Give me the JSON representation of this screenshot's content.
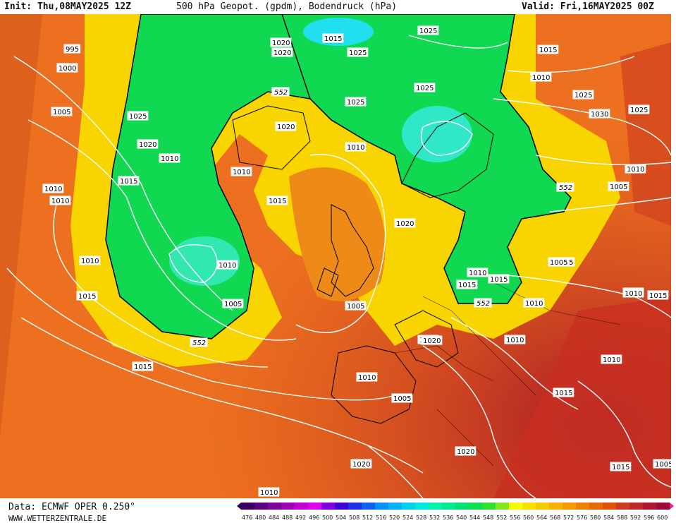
{
  "header": {
    "init": "Init: Thu,08MAY2025 12Z",
    "title": "500 hPa Geopot. (gpdm), Bodendruck (hPa)",
    "valid": "Valid: Fri,16MAY2025 00Z"
  },
  "footer": {
    "data_source": "Data: ECMWF OPER 0.250°",
    "website": "WWW.WETTERZENTRALE.DE"
  },
  "legend": {
    "ticks": [
      "476",
      "480",
      "484",
      "488",
      "492",
      "496",
      "500",
      "504",
      "508",
      "512",
      "516",
      "520",
      "524",
      "528",
      "532",
      "536",
      "540",
      "544",
      "548",
      "552",
      "556",
      "560",
      "564",
      "568",
      "572",
      "576",
      "580",
      "584",
      "588",
      "592",
      "596",
      "600"
    ],
    "colors": [
      "#3a0060",
      "#5c0080",
      "#80009c",
      "#a000b8",
      "#c000d6",
      "#e000f0",
      "#8000e0",
      "#4000d8",
      "#2030e8",
      "#1060f0",
      "#0090f8",
      "#00b0f8",
      "#00d0f0",
      "#00e8e0",
      "#00f0b0",
      "#00e890",
      "#00e070",
      "#10e050",
      "#30e030",
      "#80e820",
      "#f8f800",
      "#f8e000",
      "#f8c800",
      "#f8b000",
      "#f89800",
      "#f08000",
      "#e86800",
      "#e05000",
      "#d03820",
      "#c02828",
      "#b01830",
      "#a00838"
    ]
  },
  "map": {
    "contour_552_label": "552",
    "pressure_labels": [
      "995",
      "1000",
      "1005",
      "1025",
      "1020",
      "1010",
      "1015",
      "1010",
      "1010",
      "1010",
      "1015",
      "1020",
      "1015",
      "1025",
      "1020",
      "1025",
      "1015",
      "1010",
      "1025",
      "1030",
      "1025",
      "1020",
      "1025",
      "1025",
      "1015",
      "1010",
      "1005",
      "1010",
      "1020",
      "1010",
      "1005",
      "1010",
      "1005",
      "1010",
      "1015",
      "1015",
      "1015",
      "1015",
      "1015",
      "1010",
      "1010",
      "1005",
      "1010",
      "1005",
      "1020",
      "1020",
      "1015",
      "1010",
      "1015",
      "1005",
      "1010",
      "1015",
      "1005",
      "1010",
      "1020"
    ],
    "height_labels": [
      "552",
      "552",
      "552",
      "552",
      "552"
    ],
    "colors": {
      "ocean_orange": "#f07a18",
      "yellow": "#f8d800",
      "green": "#10d850",
      "cyan": "#30e8c0",
      "red": "#c83020",
      "contour_white": "#ffffff",
      "border": "#000000"
    }
  }
}
